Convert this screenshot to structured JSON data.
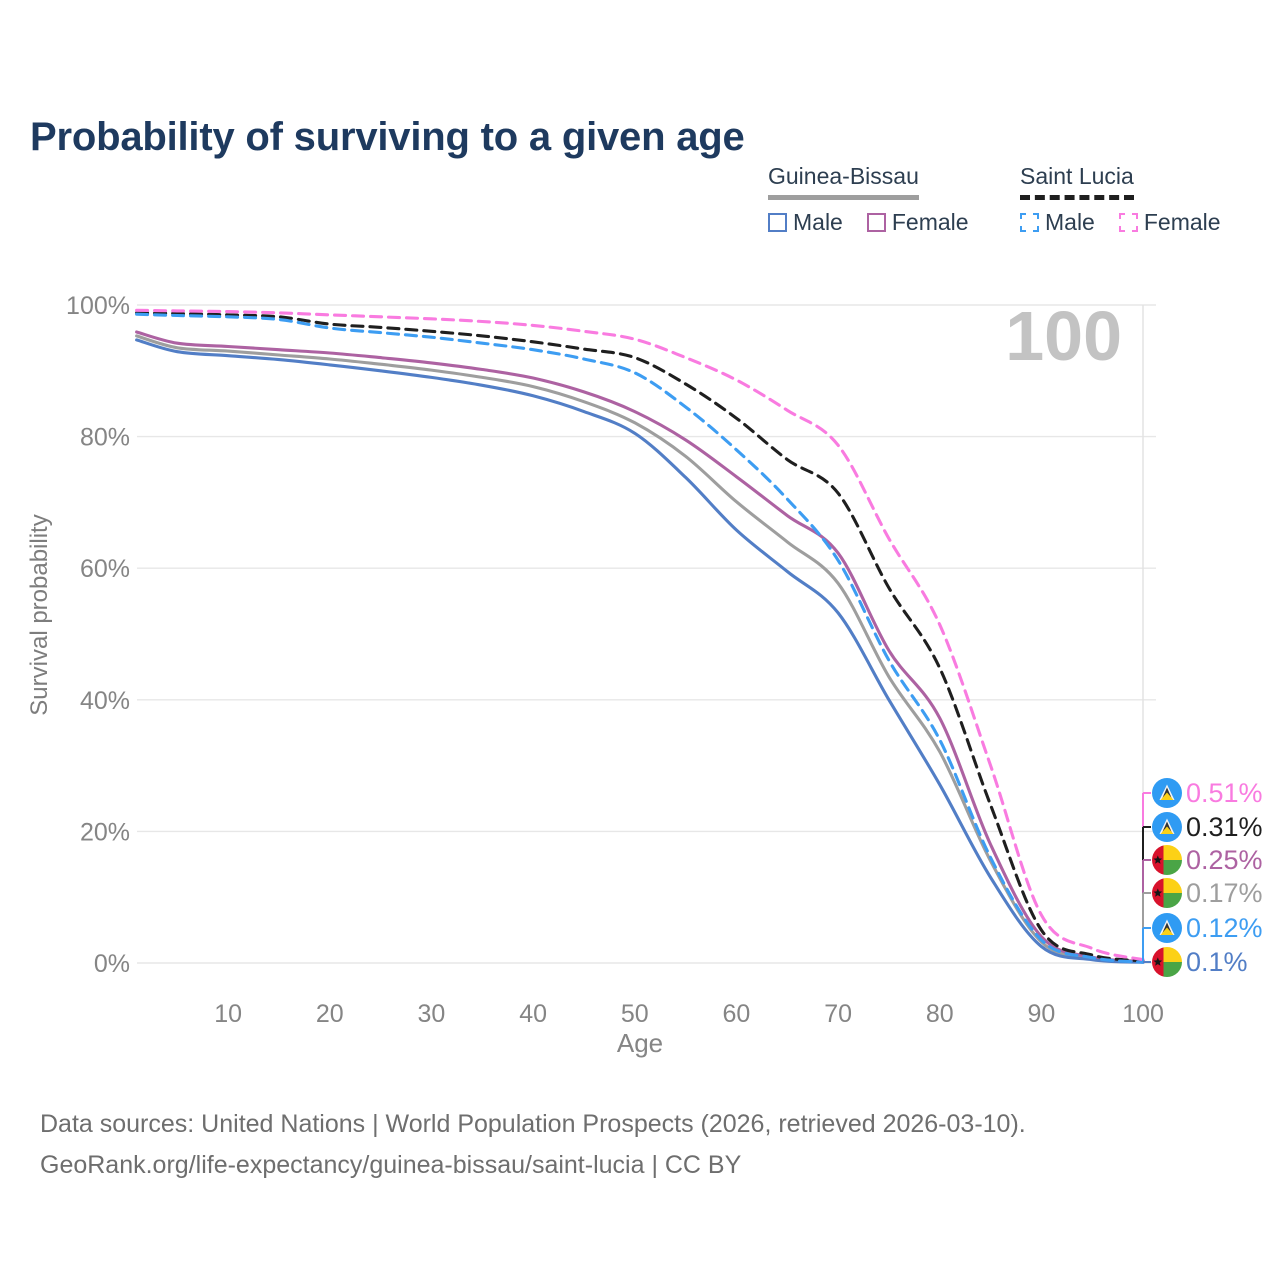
{
  "title": "Probability of surviving to a given age",
  "watermark": "100",
  "legend": {
    "groups": [
      {
        "label": "Guinea-Bissau",
        "line_style": "solid",
        "underline_color": "#9e9e9e",
        "items": [
          {
            "label": "Male",
            "color": "#527ec6",
            "dashed": false
          },
          {
            "label": "Female",
            "color": "#ad62a2",
            "dashed": false
          }
        ]
      },
      {
        "label": "Saint Lucia",
        "line_style": "dashed",
        "underline_color": "#1f1f1f",
        "items": [
          {
            "label": "Male",
            "color": "#3d9df2",
            "dashed": true
          },
          {
            "label": "Female",
            "color": "#f97be0",
            "dashed": true
          }
        ]
      }
    ]
  },
  "chart_data": {
    "type": "line",
    "title": "Probability of surviving to a given age",
    "xlabel": "Age",
    "ylabel": "Survival probability",
    "xlim": [
      1,
      100
    ],
    "ylim": [
      0,
      100
    ],
    "grid": true,
    "legend_position": "top-right",
    "x_ticks": [
      10,
      20,
      30,
      40,
      50,
      60,
      70,
      80,
      90,
      100
    ],
    "y_ticks": [
      {
        "value": 0,
        "label": "0%"
      },
      {
        "value": 20,
        "label": "20%"
      },
      {
        "value": 40,
        "label": "40%"
      },
      {
        "value": 60,
        "label": "60%"
      },
      {
        "value": 80,
        "label": "80%"
      },
      {
        "value": 100,
        "label": "100%"
      }
    ],
    "ages": [
      1,
      5,
      10,
      15,
      20,
      25,
      30,
      35,
      40,
      45,
      50,
      55,
      60,
      65,
      70,
      75,
      80,
      85,
      90,
      95,
      100
    ],
    "series": [
      {
        "name": "Guinea-Bissau",
        "country": "Guinea-Bissau",
        "sex": "all",
        "color": "#9e9e9e",
        "dashed": false,
        "values": [
          95.3,
          93.5,
          93.0,
          92.4,
          91.8,
          91.0,
          90.1,
          89.0,
          87.6,
          85.3,
          82.1,
          77.0,
          70.1,
          64.0,
          57.7,
          43.5,
          32.1,
          15.5,
          3.2,
          0.7,
          0.17
        ]
      },
      {
        "name": "Guinea-Bissau Female",
        "country": "Guinea-Bissau",
        "sex": "female",
        "color": "#ad62a2",
        "dashed": false,
        "values": [
          95.9,
          94.2,
          93.7,
          93.2,
          92.7,
          92.0,
          91.2,
          90.2,
          88.9,
          86.8,
          83.8,
          79.5,
          73.9,
          68.0,
          62.3,
          47.5,
          37.2,
          18.0,
          4.0,
          0.9,
          0.25
        ]
      },
      {
        "name": "Guinea-Bissau Male",
        "country": "Guinea-Bissau",
        "sex": "male",
        "color": "#527ec6",
        "dashed": false,
        "values": [
          94.7,
          92.9,
          92.3,
          91.7,
          90.9,
          90.0,
          89.0,
          87.8,
          86.2,
          83.8,
          80.5,
          73.8,
          65.8,
          59.5,
          53.2,
          40.0,
          27.1,
          13.0,
          2.5,
          0.5,
          0.1
        ]
      },
      {
        "name": "Saint Lucia",
        "country": "Saint Lucia",
        "sex": "all",
        "color": "#1f1f1f",
        "dashed": true,
        "values": [
          98.8,
          98.7,
          98.5,
          98.2,
          97.1,
          96.6,
          96.0,
          95.3,
          94.4,
          93.3,
          92.0,
          88.0,
          82.8,
          76.5,
          71.4,
          57.0,
          44.8,
          24.0,
          5.0,
          1.2,
          0.31
        ]
      },
      {
        "name": "Saint Lucia Male",
        "country": "Saint Lucia",
        "sex": "male",
        "color": "#3d9df2",
        "dashed": true,
        "values": [
          98.6,
          98.4,
          98.2,
          97.8,
          96.5,
          95.8,
          95.1,
          94.2,
          93.2,
          91.8,
          89.7,
          84.5,
          78.0,
          70.5,
          61.2,
          46.0,
          33.9,
          16.0,
          3.5,
          0.8,
          0.12
        ]
      },
      {
        "name": "Saint Lucia Female",
        "country": "Saint Lucia",
        "sex": "female",
        "color": "#f97be0",
        "dashed": true,
        "values": [
          99.2,
          99.1,
          99.0,
          98.8,
          98.5,
          98.2,
          97.9,
          97.5,
          96.9,
          96.0,
          94.8,
          92.0,
          88.6,
          84.0,
          78.7,
          64.5,
          51.4,
          30.0,
          7.3,
          2.2,
          0.51
        ]
      }
    ],
    "end_labels": [
      {
        "label": "0.51%",
        "flag": "saint-lucia",
        "color": "#f97be0",
        "series": "Saint Lucia Female"
      },
      {
        "label": "0.31%",
        "flag": "saint-lucia",
        "color": "#1f1f1f",
        "series": "Saint Lucia"
      },
      {
        "label": "0.25%",
        "flag": "guinea-bissau",
        "color": "#ad62a2",
        "series": "Guinea-Bissau Female"
      },
      {
        "label": "0.17%",
        "flag": "guinea-bissau",
        "color": "#9e9e9e",
        "series": "Guinea-Bissau"
      },
      {
        "label": "0.12%",
        "flag": "saint-lucia",
        "color": "#3d9df2",
        "series": "Saint Lucia Male"
      },
      {
        "label": "0.1%",
        "flag": "guinea-bissau",
        "color": "#527ec6",
        "series": "Guinea-Bissau Male"
      }
    ]
  },
  "footer": {
    "line1": "Data sources: United Nations | World Population Prospects (2026, retrieved 2026-03-10).",
    "line2": "GeoRank.org/life-expectancy/guinea-bissau/saint-lucia | CC BY"
  }
}
